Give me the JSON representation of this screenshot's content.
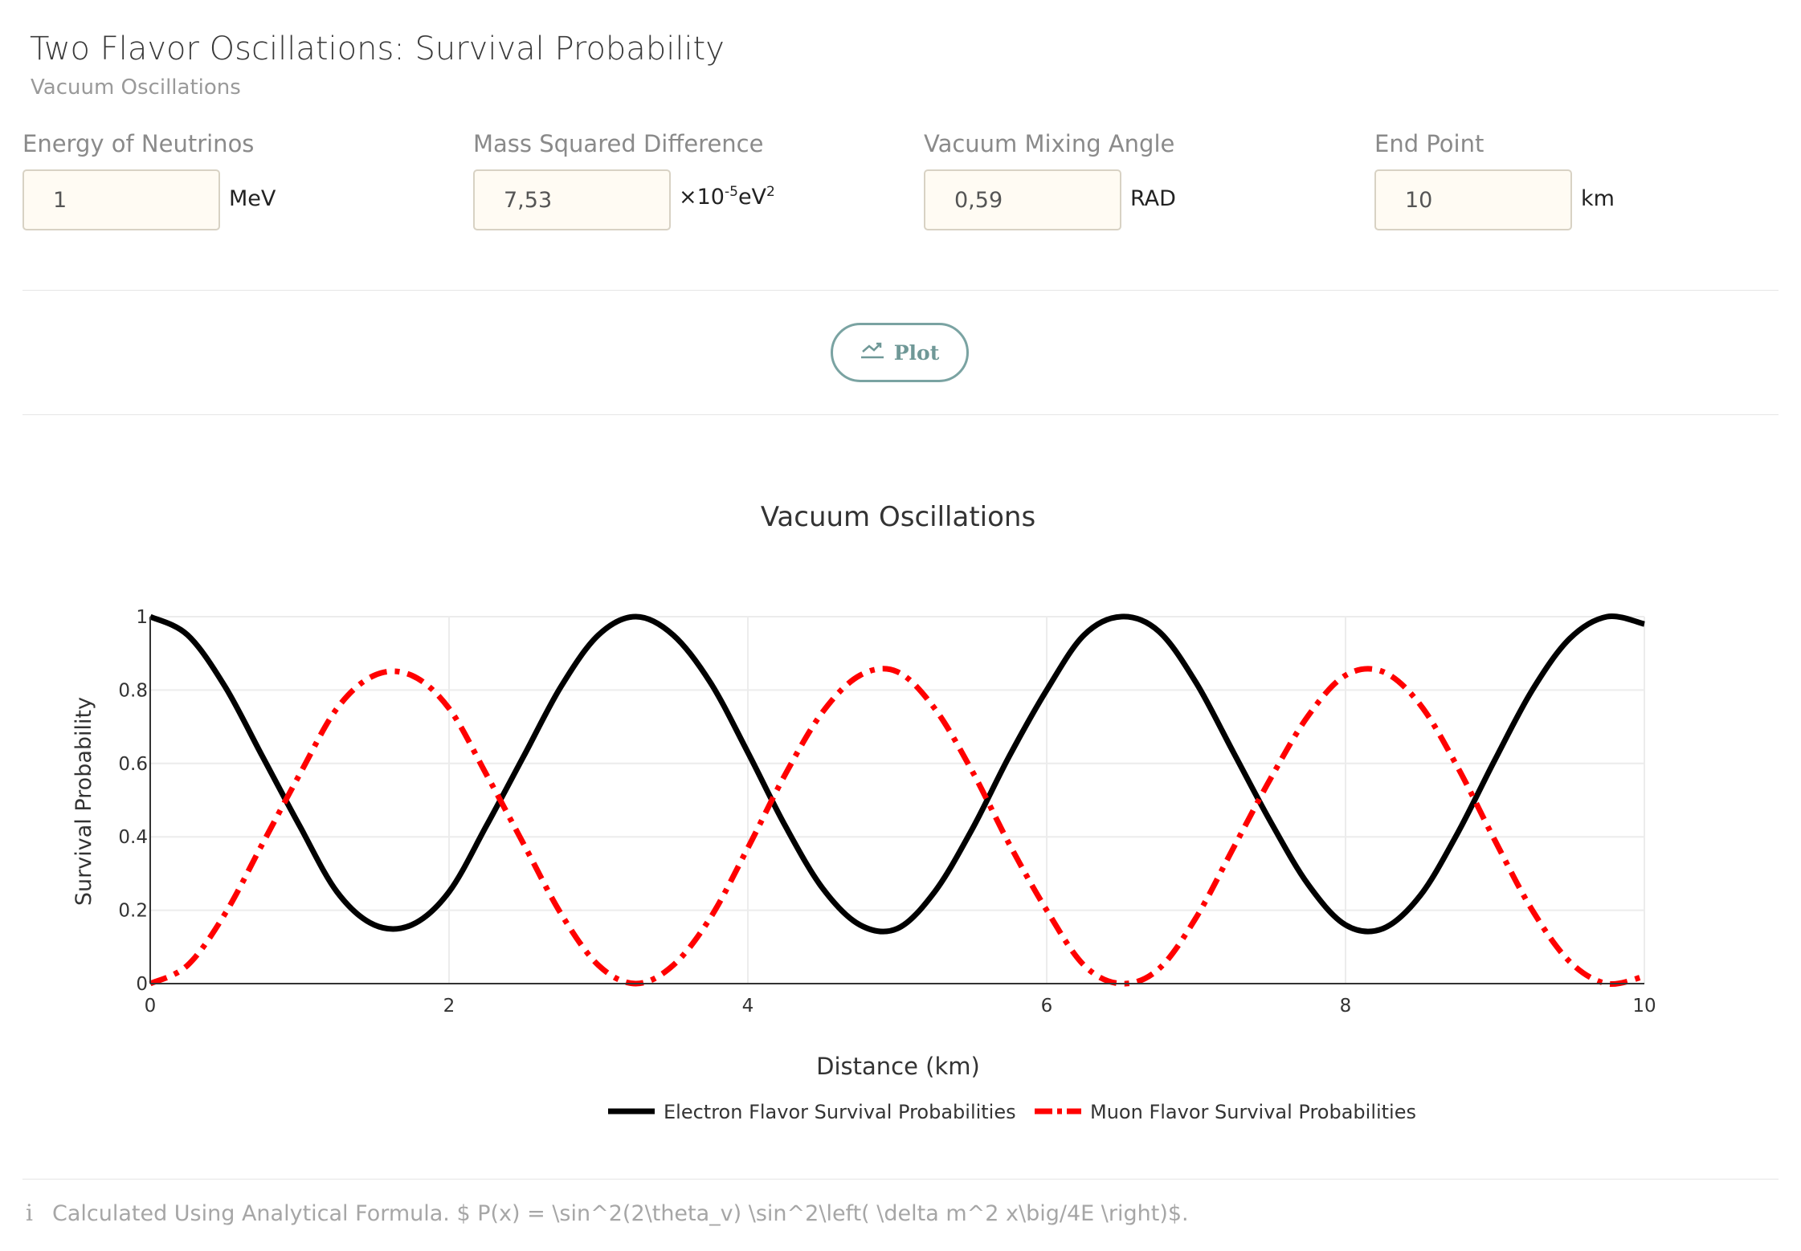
{
  "header": {
    "title": "Two Flavor Oscillations: Survival Probability",
    "subtitle": "Vacuum Oscillations"
  },
  "fields": [
    {
      "label": "Energy of Neutrinos",
      "value": "1",
      "unit": "MeV"
    },
    {
      "label": "Mass Squared Difference",
      "value": "7,53",
      "unit_prefix": "×10",
      "unit_exp": "-5",
      "unit_base": "eV",
      "unit_exp2": "2"
    },
    {
      "label": "Vacuum Mixing Angle",
      "value": "0,59",
      "unit": "RAD"
    },
    {
      "label": "End Point",
      "value": "10",
      "unit": "km"
    }
  ],
  "plot_button": {
    "label": "Plot",
    "icon": "chart-line-icon"
  },
  "info": {
    "icon": "info-icon",
    "text": "Calculated Using Analytical Formula. $ P(x) = \\sin^2(2\\theta_v) \\sin^2\\left( \\delta m^2 x\\big/4E \\right)$."
  },
  "chart_data": {
    "type": "line",
    "title": "Vacuum Oscillations",
    "xlabel": "Distance (km)",
    "ylabel": "Survival Probability",
    "xlim": [
      0,
      10
    ],
    "ylim": [
      0,
      1
    ],
    "xticks": [
      "0",
      "2",
      "4",
      "6",
      "8",
      "10"
    ],
    "yticks": [
      "0",
      "0.2",
      "0.4",
      "0.6",
      "0.8",
      "1"
    ],
    "grid": true,
    "legend_position": "bottom-center",
    "series": [
      {
        "name": "Electron Flavor Survival Probabilities",
        "color": "#000000",
        "dash": "solid",
        "x": [
          0,
          0.25,
          0.5,
          0.75,
          1,
          1.25,
          1.5,
          1.75,
          2,
          2.25,
          2.5,
          2.75,
          3,
          3.25,
          3.5,
          3.75,
          4,
          4.25,
          4.5,
          4.75,
          5,
          5.25,
          5.5,
          5.75,
          6,
          6.25,
          6.5,
          6.75,
          7,
          7.25,
          7.5,
          7.75,
          8,
          8.25,
          8.5,
          8.75,
          9,
          9.25,
          9.5,
          9.75,
          10
        ],
        "y": [
          1.0,
          0.95,
          0.81,
          0.62,
          0.43,
          0.25,
          0.16,
          0.16,
          0.25,
          0.43,
          0.62,
          0.81,
          0.95,
          1.0,
          0.95,
          0.82,
          0.63,
          0.43,
          0.26,
          0.16,
          0.15,
          0.25,
          0.42,
          0.62,
          0.8,
          0.95,
          1.0,
          0.96,
          0.82,
          0.63,
          0.44,
          0.27,
          0.16,
          0.15,
          0.24,
          0.41,
          0.61,
          0.8,
          0.94,
          1.0,
          0.98
        ]
      },
      {
        "name": "Muon Flavor Survival Probabilities",
        "color": "#ff0000",
        "dash": "dashdot",
        "x": [
          0,
          0.25,
          0.5,
          0.75,
          1,
          1.25,
          1.5,
          1.75,
          2,
          2.25,
          2.5,
          2.75,
          3,
          3.25,
          3.5,
          3.75,
          4,
          4.25,
          4.5,
          4.75,
          5,
          5.25,
          5.5,
          5.75,
          6,
          6.25,
          6.5,
          6.75,
          7,
          7.25,
          7.5,
          7.75,
          8,
          8.25,
          8.5,
          8.75,
          9,
          9.25,
          9.5,
          9.75,
          10
        ],
        "y": [
          0.0,
          0.05,
          0.19,
          0.38,
          0.57,
          0.75,
          0.84,
          0.84,
          0.75,
          0.57,
          0.38,
          0.19,
          0.05,
          0.0,
          0.05,
          0.18,
          0.37,
          0.57,
          0.74,
          0.84,
          0.85,
          0.75,
          0.58,
          0.38,
          0.2,
          0.05,
          0.0,
          0.04,
          0.18,
          0.37,
          0.56,
          0.73,
          0.84,
          0.85,
          0.76,
          0.59,
          0.39,
          0.2,
          0.06,
          0.0,
          0.02
        ]
      }
    ]
  }
}
